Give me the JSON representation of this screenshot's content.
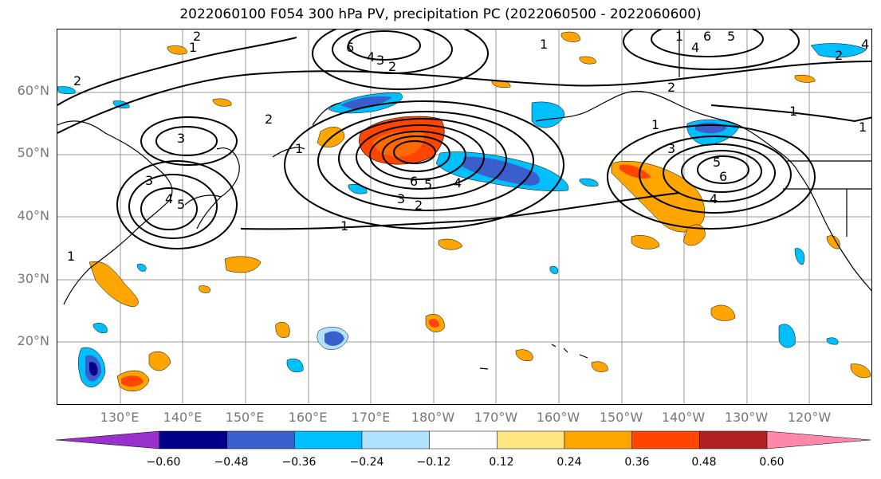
{
  "title": "2022060100 F054 300 hPa PV, precipitation PC (2022060500 - 2022060600)",
  "lat_labels": [
    "60°N",
    "50°N",
    "40°N",
    "30°N",
    "20°N"
  ],
  "lon_labels": [
    "130°E",
    "140°E",
    "150°E",
    "160°E",
    "170°E",
    "180°W",
    "170°W",
    "160°W",
    "150°W",
    "140°W",
    "130°W",
    "120°W"
  ],
  "colorbar": {
    "ticks": [
      "−0.60",
      "−0.48",
      "−0.36",
      "−0.24",
      "−0.12",
      "0.12",
      "0.24",
      "0.36",
      "0.48",
      "0.60"
    ],
    "colors": [
      "#9932cc",
      "#00008b",
      "#3a5fcd",
      "#00bfff",
      "#b0e2ff",
      "#ffffff",
      "#ffe680",
      "#ffa500",
      "#ff4500",
      "#b22222",
      "#ff88aa"
    ]
  },
  "pv_contour_labels": [
    "1",
    "2",
    "3",
    "4",
    "5",
    "6"
  ],
  "colors": {
    "land_outline": "#000000",
    "grid": "#9a9a9a",
    "contour": "#000000"
  }
}
